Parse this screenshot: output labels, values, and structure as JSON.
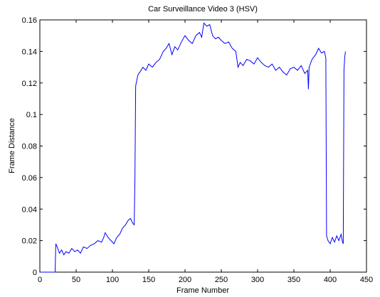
{
  "chart_data": {
    "type": "line",
    "title": "Car Surveillance Video 3 (HSV)",
    "x_label": "Frame Number",
    "y_label": "Frame Distance",
    "series": [
      {
        "name": "Frame Distance",
        "color": "#0000ff",
        "x": [
          0,
          21,
          22,
          24,
          27,
          30,
          33,
          36,
          40,
          44,
          48,
          52,
          56,
          60,
          65,
          70,
          75,
          80,
          85,
          88,
          90,
          94,
          98,
          102,
          106,
          110,
          114,
          118,
          122,
          125,
          128,
          130,
          131,
          132,
          135,
          138,
          142,
          146,
          150,
          155,
          160,
          165,
          170,
          174,
          178,
          182,
          186,
          190,
          195,
          200,
          205,
          210,
          215,
          220,
          223,
          226,
          230,
          234,
          238,
          242,
          246,
          250,
          255,
          260,
          265,
          270,
          273,
          276,
          280,
          285,
          290,
          295,
          300,
          305,
          310,
          315,
          320,
          325,
          330,
          335,
          340,
          345,
          350,
          355,
          360,
          365,
          369,
          370,
          371,
          375,
          380,
          384,
          388,
          392,
          394,
          395,
          397,
          400,
          403,
          406,
          409,
          412,
          415,
          417,
          418,
          419,
          420,
          421
        ],
        "values": [
          0,
          0,
          0.018,
          0.016,
          0.012,
          0.014,
          0.011,
          0.013,
          0.012,
          0.015,
          0.013,
          0.014,
          0.012,
          0.016,
          0.015,
          0.017,
          0.018,
          0.02,
          0.019,
          0.022,
          0.025,
          0.022,
          0.02,
          0.018,
          0.022,
          0.024,
          0.028,
          0.03,
          0.033,
          0.034,
          0.031,
          0.03,
          0.06,
          0.118,
          0.125,
          0.127,
          0.13,
          0.128,
          0.132,
          0.13,
          0.133,
          0.135,
          0.14,
          0.142,
          0.145,
          0.138,
          0.143,
          0.141,
          0.146,
          0.15,
          0.147,
          0.145,
          0.15,
          0.152,
          0.149,
          0.158,
          0.156,
          0.157,
          0.15,
          0.148,
          0.149,
          0.147,
          0.145,
          0.146,
          0.142,
          0.14,
          0.13,
          0.133,
          0.131,
          0.135,
          0.134,
          0.132,
          0.136,
          0.133,
          0.131,
          0.13,
          0.132,
          0.128,
          0.13,
          0.127,
          0.125,
          0.129,
          0.13,
          0.128,
          0.131,
          0.126,
          0.128,
          0.116,
          0.13,
          0.135,
          0.138,
          0.142,
          0.139,
          0.14,
          0.136,
          0.023,
          0.02,
          0.018,
          0.022,
          0.019,
          0.023,
          0.02,
          0.024,
          0.019,
          0.018,
          0.128,
          0.136,
          0.14
        ]
      }
    ],
    "xlim": [
      0,
      450
    ],
    "xticks": [
      0,
      50,
      100,
      150,
      200,
      250,
      300,
      350,
      400,
      450
    ],
    "ylim": [
      0,
      0.16
    ],
    "yticks": [
      0,
      0.02,
      0.04,
      0.06,
      0.08,
      0.1,
      0.12,
      0.14,
      0.16
    ]
  }
}
